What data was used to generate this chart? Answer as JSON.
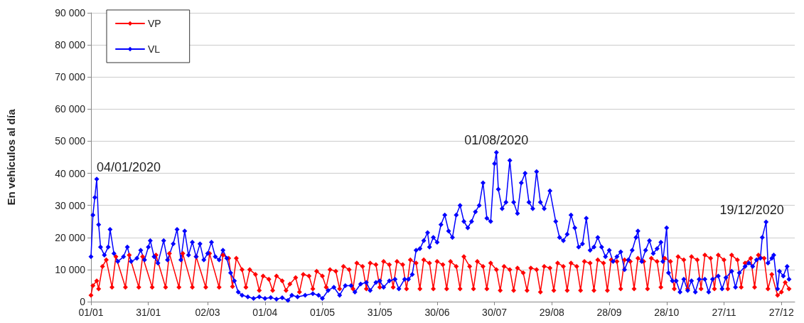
{
  "chart_data": {
    "type": "line",
    "ylabel": "En vehículos al día",
    "xlim": [
      "2020-01-01",
      "2021-01-03"
    ],
    "xticks": [
      {
        "value": "2020-01-01",
        "label": "01/01"
      },
      {
        "value": "2020-01-31",
        "label": "31/01"
      },
      {
        "value": "2020-03-02",
        "label": "02/03"
      },
      {
        "value": "2020-04-01",
        "label": "01/04"
      },
      {
        "value": "2020-05-01",
        "label": "01/05"
      },
      {
        "value": "2020-05-31",
        "label": "31/05"
      },
      {
        "value": "2020-06-30",
        "label": "30/06"
      },
      {
        "value": "2020-07-30",
        "label": "30/07"
      },
      {
        "value": "2020-08-29",
        "label": "29/08"
      },
      {
        "value": "2020-09-28",
        "label": "28/09"
      },
      {
        "value": "2020-10-28",
        "label": "28/10"
      },
      {
        "value": "2020-11-27",
        "label": "27/11"
      },
      {
        "value": "2020-12-27",
        "label": "27/12"
      }
    ],
    "ylim": [
      0,
      90000
    ],
    "yticks": [
      0,
      {
        "value": 10000,
        "label": "10 000"
      },
      {
        "value": 20000,
        "label": "20 000"
      },
      {
        "value": 30000,
        "label": "30 000"
      },
      {
        "value": 40000,
        "label": "40 000"
      },
      {
        "value": 50000,
        "label": "50 000"
      },
      {
        "value": 60000,
        "label": "60 000"
      },
      {
        "value": 70000,
        "label": "70 000"
      },
      {
        "value": 80000,
        "label": "80 000"
      },
      {
        "value": 90000,
        "label": "90 000"
      }
    ],
    "grid": "y",
    "legend": "top left",
    "marker": "diamond",
    "line_style": "solid",
    "annotations": [
      {
        "text": "04/01/2020",
        "x": "2020-01-04",
        "y": 38200
      },
      {
        "text": "01/08/2020",
        "x": "2020-07-31",
        "y": 46500
      },
      {
        "text": "19/12/2020",
        "x": "2020-12-19",
        "y": 24800
      }
    ],
    "series": [
      {
        "name": "VP",
        "color": "#ff0000",
        "x": [
          "2020-01-01",
          "2020-01-02",
          "2020-01-04",
          "2020-01-05",
          "2020-01-07",
          "2020-01-09",
          "2020-01-12",
          "2020-01-14",
          "2020-01-19",
          "2020-01-21",
          "2020-01-26",
          "2020-01-28",
          "2020-02-02",
          "2020-02-04",
          "2020-02-09",
          "2020-02-11",
          "2020-02-16",
          "2020-02-18",
          "2020-02-23",
          "2020-02-25",
          "2020-03-01",
          "2020-03-03",
          "2020-03-08",
          "2020-03-10",
          "2020-03-13",
          "2020-03-15",
          "2020-03-17",
          "2020-03-20",
          "2020-03-22",
          "2020-03-24",
          "2020-03-27",
          "2020-03-29",
          "2020-03-31",
          "2020-04-03",
          "2020-04-05",
          "2020-04-07",
          "2020-04-10",
          "2020-04-12",
          "2020-04-14",
          "2020-04-17",
          "2020-04-19",
          "2020-04-21",
          "2020-04-24",
          "2020-04-26",
          "2020-04-28",
          "2020-05-01",
          "2020-05-03",
          "2020-05-05",
          "2020-05-08",
          "2020-05-10",
          "2020-05-12",
          "2020-05-15",
          "2020-05-17",
          "2020-05-19",
          "2020-05-22",
          "2020-05-24",
          "2020-05-26",
          "2020-05-29",
          "2020-05-31",
          "2020-06-02",
          "2020-06-05",
          "2020-06-07",
          "2020-06-09",
          "2020-06-12",
          "2020-06-14",
          "2020-06-16",
          "2020-06-19",
          "2020-06-21",
          "2020-06-23",
          "2020-06-26",
          "2020-06-28",
          "2020-06-30",
          "2020-07-03",
          "2020-07-05",
          "2020-07-07",
          "2020-07-10",
          "2020-07-12",
          "2020-07-14",
          "2020-07-17",
          "2020-07-19",
          "2020-07-21",
          "2020-07-24",
          "2020-07-26",
          "2020-07-28",
          "2020-07-31",
          "2020-08-02",
          "2020-08-04",
          "2020-08-07",
          "2020-08-09",
          "2020-08-11",
          "2020-08-14",
          "2020-08-16",
          "2020-08-18",
          "2020-08-21",
          "2020-08-23",
          "2020-08-25",
          "2020-08-28",
          "2020-08-30",
          "2020-09-01",
          "2020-09-04",
          "2020-09-06",
          "2020-09-08",
          "2020-09-11",
          "2020-09-13",
          "2020-09-15",
          "2020-09-18",
          "2020-09-20",
          "2020-09-22",
          "2020-09-25",
          "2020-09-27",
          "2020-09-29",
          "2020-10-02",
          "2020-10-04",
          "2020-10-06",
          "2020-10-09",
          "2020-10-11",
          "2020-10-13",
          "2020-10-16",
          "2020-10-18",
          "2020-10-20",
          "2020-10-23",
          "2020-10-25",
          "2020-10-27",
          "2020-10-30",
          "2020-11-01",
          "2020-11-03",
          "2020-11-06",
          "2020-11-08",
          "2020-11-10",
          "2020-11-13",
          "2020-11-15",
          "2020-11-17",
          "2020-11-20",
          "2020-11-22",
          "2020-11-24",
          "2020-11-27",
          "2020-11-29",
          "2020-12-01",
          "2020-12-04",
          "2020-12-06",
          "2020-12-08",
          "2020-12-11",
          "2020-12-13",
          "2020-12-15",
          "2020-12-18",
          "2020-12-20",
          "2020-12-22",
          "2020-12-25",
          "2020-12-27",
          "2020-12-29",
          "2020-12-31"
        ],
        "values": [
          2000,
          5000,
          6500,
          4000,
          11000,
          13000,
          4500,
          14000,
          4500,
          14500,
          4500,
          14000,
          4500,
          14500,
          4500,
          15000,
          4500,
          15000,
          4500,
          14000,
          4500,
          15000,
          4500,
          14500,
          13500,
          4700,
          13500,
          10000,
          4500,
          10000,
          8500,
          3500,
          8000,
          7000,
          3500,
          8000,
          6500,
          3500,
          5500,
          7500,
          3000,
          8500,
          8000,
          4000,
          9500,
          8000,
          4500,
          10000,
          9500,
          4000,
          11000,
          10000,
          4000,
          12000,
          11000,
          4000,
          12000,
          11500,
          4500,
          12500,
          11500,
          4500,
          12500,
          11500,
          4000,
          13000,
          12000,
          4000,
          13000,
          12000,
          4000,
          12500,
          11500,
          4000,
          12500,
          11000,
          4000,
          14000,
          11000,
          4000,
          12500,
          11000,
          4000,
          12000,
          10000,
          3500,
          11000,
          10000,
          3500,
          10500,
          9000,
          3500,
          10500,
          10000,
          3000,
          11000,
          10500,
          3500,
          12000,
          11000,
          3500,
          12000,
          11000,
          3500,
          12500,
          12000,
          3500,
          13000,
          12000,
          3500,
          13000,
          12500,
          4000,
          13000,
          12500,
          4000,
          13500,
          12500,
          4000,
          13500,
          12500,
          4500,
          13500,
          12500,
          4000,
          14000,
          13000,
          4000,
          14000,
          13000,
          4000,
          14500,
          13500,
          4000,
          14500,
          13000,
          4000,
          14500,
          13000,
          4500,
          12000,
          13500,
          4500,
          14500,
          13500,
          4000,
          8500,
          2000,
          3000,
          6000,
          4000
        ]
      },
      {
        "name": "VL",
        "color": "#0000ff",
        "x": [
          "2020-01-01",
          "2020-01-02",
          "2020-01-03",
          "2020-01-04",
          "2020-01-05",
          "2020-01-06",
          "2020-01-08",
          "2020-01-10",
          "2020-01-11",
          "2020-01-13",
          "2020-01-15",
          "2020-01-18",
          "2020-01-20",
          "2020-01-22",
          "2020-01-25",
          "2020-01-27",
          "2020-01-29",
          "2020-01-31",
          "2020-02-01",
          "2020-02-03",
          "2020-02-05",
          "2020-02-08",
          "2020-02-10",
          "2020-02-13",
          "2020-02-15",
          "2020-02-17",
          "2020-02-19",
          "2020-02-21",
          "2020-02-23",
          "2020-02-25",
          "2020-02-27",
          "2020-02-29",
          "2020-03-02",
          "2020-03-04",
          "2020-03-06",
          "2020-03-08",
          "2020-03-10",
          "2020-03-12",
          "2020-03-14",
          "2020-03-16",
          "2020-03-18",
          "2020-03-20",
          "2020-03-23",
          "2020-03-26",
          "2020-03-29",
          "2020-04-01",
          "2020-04-04",
          "2020-04-07",
          "2020-04-10",
          "2020-04-13",
          "2020-04-15",
          "2020-04-18",
          "2020-04-22",
          "2020-04-26",
          "2020-04-29",
          "2020-05-01",
          "2020-05-04",
          "2020-05-07",
          "2020-05-10",
          "2020-05-13",
          "2020-05-16",
          "2020-05-18",
          "2020-05-21",
          "2020-05-24",
          "2020-05-26",
          "2020-05-29",
          "2020-05-31",
          "2020-06-02",
          "2020-06-05",
          "2020-06-08",
          "2020-06-10",
          "2020-06-13",
          "2020-06-15",
          "2020-06-17",
          "2020-06-19",
          "2020-06-21",
          "2020-06-23",
          "2020-06-25",
          "2020-06-26",
          "2020-06-28",
          "2020-06-30",
          "2020-07-02",
          "2020-07-04",
          "2020-07-06",
          "2020-07-08",
          "2020-07-10",
          "2020-07-12",
          "2020-07-14",
          "2020-07-16",
          "2020-07-18",
          "2020-07-20",
          "2020-07-22",
          "2020-07-24",
          "2020-07-26",
          "2020-07-28",
          "2020-07-30",
          "2020-07-31",
          "2020-08-01",
          "2020-08-03",
          "2020-08-05",
          "2020-08-07",
          "2020-08-09",
          "2020-08-11",
          "2020-08-13",
          "2020-08-15",
          "2020-08-17",
          "2020-08-19",
          "2020-08-21",
          "2020-08-23",
          "2020-08-25",
          "2020-08-28",
          "2020-08-31",
          "2020-09-02",
          "2020-09-04",
          "2020-09-06",
          "2020-09-08",
          "2020-09-10",
          "2020-09-12",
          "2020-09-14",
          "2020-09-16",
          "2020-09-18",
          "2020-09-20",
          "2020-09-22",
          "2020-09-24",
          "2020-09-26",
          "2020-09-28",
          "2020-09-30",
          "2020-10-02",
          "2020-10-04",
          "2020-10-06",
          "2020-10-08",
          "2020-10-10",
          "2020-10-12",
          "2020-10-13",
          "2020-10-15",
          "2020-10-17",
          "2020-10-19",
          "2020-10-21",
          "2020-10-23",
          "2020-10-25",
          "2020-10-26",
          "2020-10-28",
          "2020-10-29",
          "2020-10-31",
          "2020-11-02",
          "2020-11-04",
          "2020-11-06",
          "2020-11-08",
          "2020-11-10",
          "2020-11-12",
          "2020-11-14",
          "2020-11-17",
          "2020-11-19",
          "2020-11-21",
          "2020-11-24",
          "2020-11-26",
          "2020-11-28",
          "2020-12-01",
          "2020-12-03",
          "2020-12-05",
          "2020-12-08",
          "2020-12-10",
          "2020-12-12",
          "2020-12-14",
          "2020-12-16",
          "2020-12-17",
          "2020-12-19",
          "2020-12-20",
          "2020-12-22",
          "2020-12-23",
          "2020-12-25",
          "2020-12-26",
          "2020-12-28",
          "2020-12-30",
          "2020-12-31"
        ],
        "values": [
          14000,
          27000,
          32500,
          38200,
          24000,
          17000,
          14500,
          17000,
          22500,
          15000,
          12500,
          14000,
          17000,
          12500,
          13500,
          16000,
          13000,
          17000,
          19000,
          14000,
          12000,
          19000,
          13000,
          18000,
          22500,
          13000,
          22000,
          14500,
          18500,
          14000,
          18000,
          13000,
          15000,
          18500,
          14000,
          13000,
          16000,
          13500,
          9000,
          6500,
          3000,
          2000,
          1500,
          1000,
          1500,
          1000,
          1300,
          800,
          1200,
          400,
          2000,
          1500,
          2000,
          2500,
          2000,
          1000,
          3500,
          4500,
          2000,
          5000,
          5000,
          3000,
          5500,
          6000,
          3500,
          6000,
          6500,
          4500,
          6500,
          7000,
          4000,
          7000,
          7000,
          8500,
          16000,
          16500,
          19000,
          21500,
          17000,
          20000,
          18500,
          24000,
          27000,
          22000,
          20000,
          27000,
          30000,
          25000,
          23000,
          25000,
          28000,
          30000,
          37000,
          26000,
          25000,
          43000,
          46500,
          35000,
          29000,
          31000,
          44000,
          31000,
          27500,
          37000,
          40000,
          31000,
          29000,
          40500,
          31000,
          29000,
          34500,
          25000,
          20000,
          19000,
          21000,
          27000,
          23000,
          17000,
          18000,
          26000,
          16000,
          17000,
          20000,
          17000,
          14000,
          16000,
          12500,
          14000,
          15500,
          10000,
          13000,
          16000,
          20000,
          22000,
          12500,
          16000,
          19000,
          15000,
          16500,
          18500,
          12500,
          23000,
          9000,
          6500,
          6500,
          3000,
          7000,
          3500,
          6500,
          3000,
          7000,
          7000,
          3000,
          7000,
          8000,
          4000,
          7500,
          9500,
          4500,
          9000,
          11000,
          12000,
          11000,
          13000,
          13500,
          20000,
          24800,
          12000,
          13500,
          14500,
          4000,
          9500,
          8000,
          11000,
          7000
        ]
      }
    ]
  }
}
